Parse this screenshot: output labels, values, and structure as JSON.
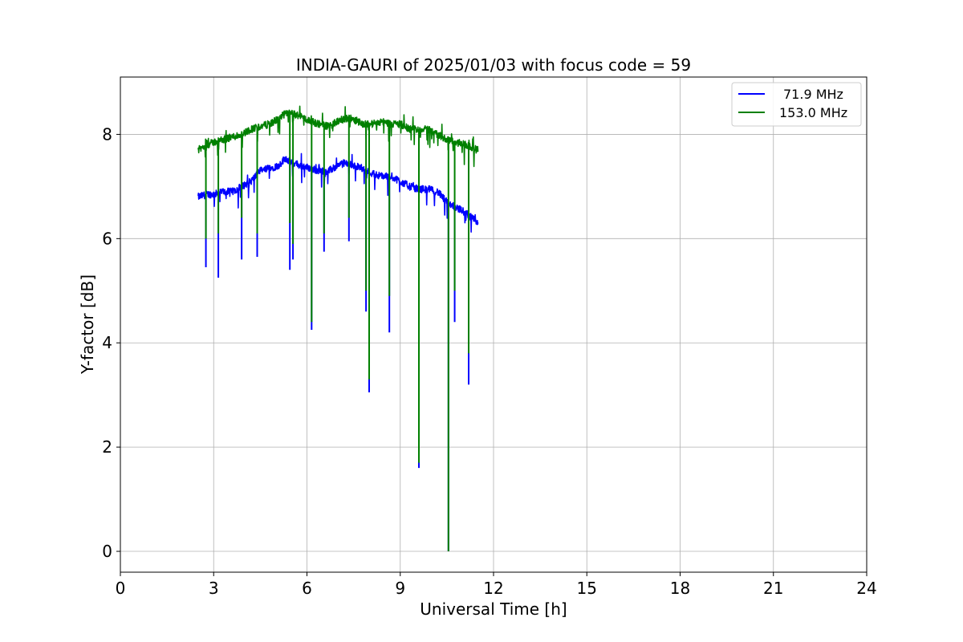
{
  "chart_data": {
    "type": "line",
    "title": "INDIA-GAURI of 2025/01/03 with focus code = 59",
    "xlabel": "Universal Time [h]",
    "ylabel": "Y-factor [dB]",
    "xlim": [
      0,
      24
    ],
    "ylim": [
      -0.4,
      9.1
    ],
    "xticks": [
      0,
      3,
      6,
      9,
      12,
      15,
      18,
      21,
      24
    ],
    "yticks": [
      0,
      2,
      4,
      6,
      8
    ],
    "grid": true,
    "legend_position": "top-right",
    "series": [
      {
        "name": "71.9 MHz",
        "color": "#0000ff",
        "x": [
          2.5,
          2.8,
          3.0,
          3.3,
          3.6,
          3.9,
          4.2,
          4.5,
          4.8,
          5.1,
          5.3,
          5.5,
          5.8,
          6.1,
          6.4,
          6.7,
          7.0,
          7.2,
          7.5,
          7.8,
          8.1,
          8.4,
          8.7,
          9.0,
          9.3,
          9.6,
          9.9,
          10.2,
          10.5,
          10.8,
          11.1,
          11.3,
          11.5
        ],
        "y": [
          6.8,
          6.85,
          6.85,
          6.9,
          6.9,
          7.0,
          7.1,
          7.3,
          7.35,
          7.4,
          7.55,
          7.45,
          7.4,
          7.35,
          7.3,
          7.3,
          7.4,
          7.45,
          7.4,
          7.35,
          7.25,
          7.2,
          7.2,
          7.1,
          7.0,
          6.95,
          6.95,
          6.9,
          6.7,
          6.6,
          6.5,
          6.4,
          6.3
        ],
        "dips": [
          [
            2.75,
            5.45
          ],
          [
            3.15,
            5.25
          ],
          [
            3.9,
            5.6
          ],
          [
            4.4,
            5.65
          ],
          [
            5.45,
            5.4
          ],
          [
            5.55,
            5.6
          ],
          [
            6.15,
            4.25
          ],
          [
            6.55,
            5.75
          ],
          [
            7.35,
            5.95
          ],
          [
            7.9,
            4.6
          ],
          [
            8.0,
            3.05
          ],
          [
            8.65,
            4.2
          ],
          [
            9.6,
            1.6
          ],
          [
            10.55,
            0.0
          ],
          [
            10.75,
            4.4
          ],
          [
            11.2,
            3.2
          ]
        ]
      },
      {
        "name": "153.0 MHz",
        "color": "#008000",
        "x": [
          2.5,
          2.8,
          3.0,
          3.3,
          3.6,
          3.9,
          4.2,
          4.5,
          4.8,
          5.1,
          5.3,
          5.5,
          5.8,
          6.1,
          6.4,
          6.7,
          7.0,
          7.2,
          7.5,
          7.8,
          8.1,
          8.4,
          8.7,
          9.0,
          9.3,
          9.6,
          9.9,
          10.2,
          10.5,
          10.8,
          11.1,
          11.3,
          11.5
        ],
        "y": [
          7.7,
          7.8,
          7.85,
          7.9,
          7.95,
          8.0,
          8.1,
          8.15,
          8.2,
          8.3,
          8.4,
          8.4,
          8.35,
          8.25,
          8.2,
          8.15,
          8.25,
          8.3,
          8.3,
          8.2,
          8.2,
          8.25,
          8.2,
          8.2,
          8.1,
          8.1,
          8.1,
          8.0,
          7.9,
          7.85,
          7.8,
          7.75,
          7.7
        ],
        "dips": [
          [
            2.75,
            6.0
          ],
          [
            3.15,
            6.1
          ],
          [
            3.9,
            6.4
          ],
          [
            4.4,
            6.1
          ],
          [
            5.45,
            6.3
          ],
          [
            5.55,
            5.9
          ],
          [
            6.15,
            4.4
          ],
          [
            6.55,
            6.1
          ],
          [
            7.35,
            6.4
          ],
          [
            7.9,
            5.0
          ],
          [
            8.0,
            3.3
          ],
          [
            8.65,
            4.9
          ],
          [
            9.6,
            1.7
          ],
          [
            10.55,
            0.0
          ],
          [
            10.75,
            5.0
          ],
          [
            11.2,
            3.8
          ]
        ]
      }
    ]
  }
}
